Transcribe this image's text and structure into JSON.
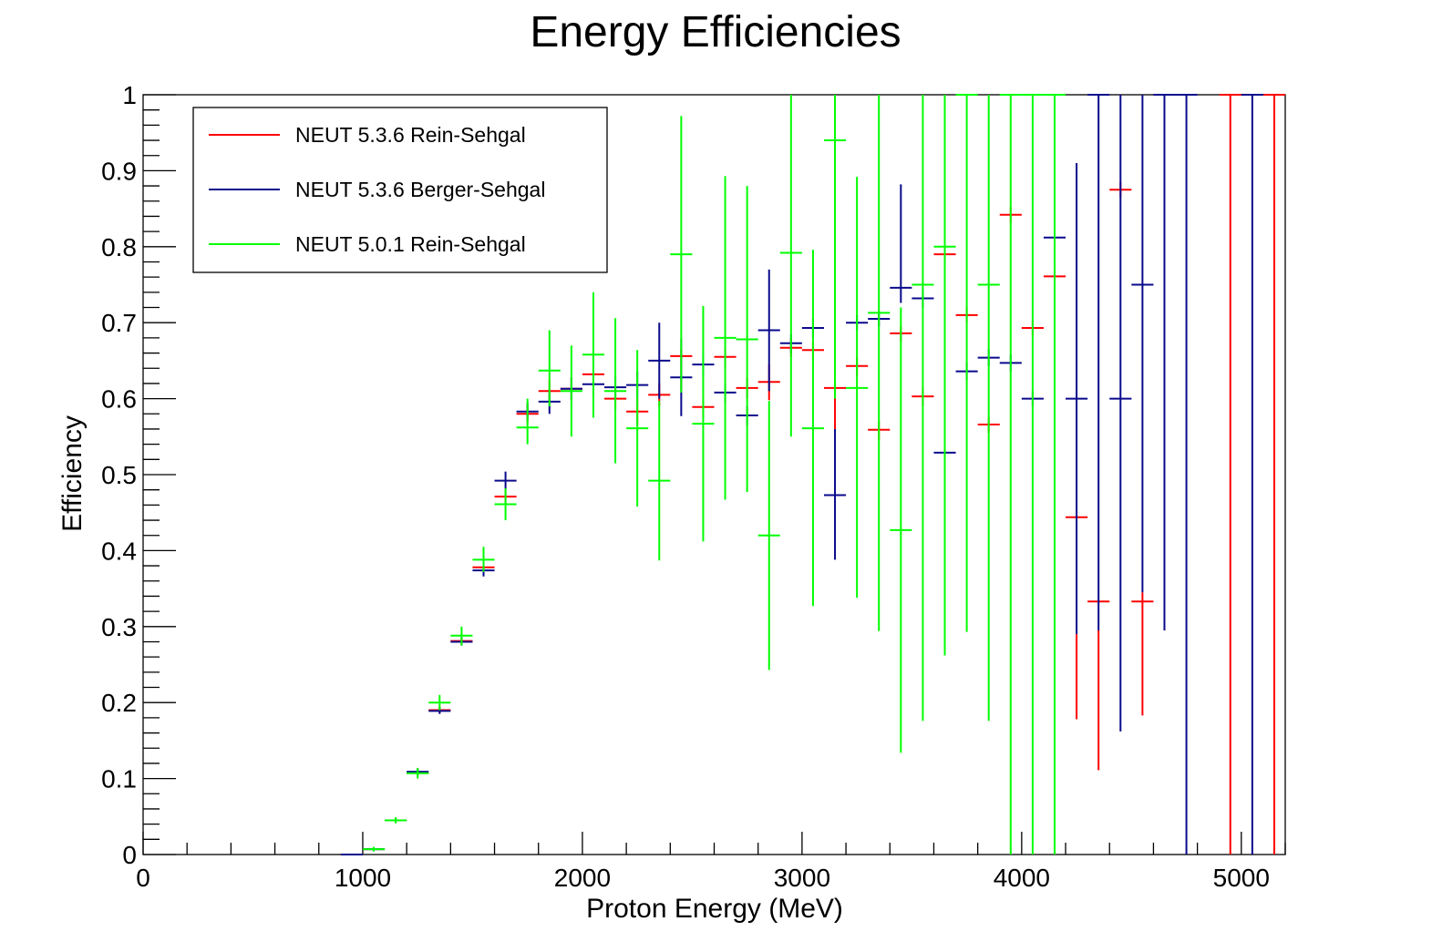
{
  "chart_data": {
    "type": "scatter",
    "title": "Energy Efficiencies",
    "xlabel": "Proton Energy (MeV)",
    "ylabel": "Efficiency",
    "xlim": [
      0,
      5200
    ],
    "ylim": [
      0,
      1
    ],
    "bin_width": 100,
    "x_ticks": [
      "0",
      "1000",
      "2000",
      "3000",
      "4000",
      "5000"
    ],
    "y_ticks": [
      "0",
      "0.1",
      "0.2",
      "0.3",
      "0.4",
      "0.5",
      "0.6",
      "0.7",
      "0.8",
      "0.9",
      "1"
    ],
    "legend_position": "top-left",
    "grid": false,
    "series": [
      {
        "name": "NEUT 5.3.6 Rein-Sehgal",
        "color": "#ff0000",
        "points": [
          {
            "x": 950,
            "y": 0,
            "lo": 0,
            "hi": 0
          },
          {
            "x": 1050,
            "y": 0.007,
            "lo": 0.005,
            "hi": 0.009
          },
          {
            "x": 1150,
            "y": 0.045,
            "lo": 0.043,
            "hi": 0.048
          },
          {
            "x": 1250,
            "y": 0.108,
            "lo": 0.104,
            "hi": 0.112
          },
          {
            "x": 1350,
            "y": 0.19,
            "lo": 0.186,
            "hi": 0.195
          },
          {
            "x": 1450,
            "y": 0.281,
            "lo": 0.276,
            "hi": 0.287
          },
          {
            "x": 1550,
            "y": 0.378,
            "lo": 0.37,
            "hi": 0.386
          },
          {
            "x": 1650,
            "y": 0.471,
            "lo": 0.46,
            "hi": 0.482
          },
          {
            "x": 1750,
            "y": 0.58,
            "lo": 0.568,
            "hi": 0.592
          },
          {
            "x": 1850,
            "y": 0.61,
            "lo": 0.595,
            "hi": 0.625
          },
          {
            "x": 1950,
            "y": 0.613,
            "lo": 0.598,
            "hi": 0.628
          },
          {
            "x": 2050,
            "y": 0.632,
            "lo": 0.615,
            "hi": 0.649
          },
          {
            "x": 2150,
            "y": 0.6,
            "lo": 0.585,
            "hi": 0.618
          },
          {
            "x": 2250,
            "y": 0.583,
            "lo": 0.565,
            "hi": 0.6
          },
          {
            "x": 2350,
            "y": 0.605,
            "lo": 0.59,
            "hi": 0.62
          },
          {
            "x": 2450,
            "y": 0.656,
            "lo": 0.61,
            "hi": 0.665
          },
          {
            "x": 2550,
            "y": 0.589,
            "lo": 0.575,
            "hi": 0.6
          },
          {
            "x": 2650,
            "y": 0.655,
            "lo": 0.64,
            "hi": 0.668
          },
          {
            "x": 2750,
            "y": 0.614,
            "lo": 0.6,
            "hi": 0.628
          },
          {
            "x": 2850,
            "y": 0.622,
            "lo": 0.598,
            "hi": 0.645
          },
          {
            "x": 2950,
            "y": 0.667,
            "lo": 0.655,
            "hi": 0.68
          },
          {
            "x": 3050,
            "y": 0.664,
            "lo": 0.65,
            "hi": 0.675
          },
          {
            "x": 3150,
            "y": 0.614,
            "lo": 0.56,
            "hi": 0.625
          },
          {
            "x": 3250,
            "y": 0.643,
            "lo": 0.63,
            "hi": 0.655
          },
          {
            "x": 3350,
            "y": 0.559,
            "lo": 0.545,
            "hi": 0.57
          },
          {
            "x": 3450,
            "y": 0.686,
            "lo": 0.675,
            "hi": 0.695
          },
          {
            "x": 3550,
            "y": 0.603,
            "lo": 0.59,
            "hi": 0.615
          },
          {
            "x": 3650,
            "y": 0.79,
            "lo": 0.78,
            "hi": 0.8
          },
          {
            "x": 3750,
            "y": 0.71,
            "lo": 0.7,
            "hi": 0.72
          },
          {
            "x": 3850,
            "y": 0.566,
            "lo": 0.555,
            "hi": 0.575
          },
          {
            "x": 3950,
            "y": 0.842,
            "lo": 0.832,
            "hi": 0.852
          },
          {
            "x": 4050,
            "y": 0.693,
            "lo": 0.683,
            "hi": 0.703
          },
          {
            "x": 4150,
            "y": 0.761,
            "lo": 0.751,
            "hi": 0.771
          },
          {
            "x": 4250,
            "y": 0.444,
            "lo": 0.178,
            "hi": 0.29
          },
          {
            "x": 4350,
            "y": 0.333,
            "lo": 0.111,
            "hi": 0.295
          },
          {
            "x": 4450,
            "y": 0.875,
            "lo": 0.865,
            "hi": 0.885
          },
          {
            "x": 4550,
            "y": 0.333,
            "lo": 0.183,
            "hi": 0.345
          },
          {
            "x": 4950,
            "y": 1,
            "lo": 0,
            "hi": 1
          },
          {
            "x": 5150,
            "y": 1,
            "lo": 0,
            "hi": 1
          }
        ]
      },
      {
        "name": "NEUT 5.3.6 Berger-Sehgal",
        "color": "#0a0a8c",
        "points": [
          {
            "x": 950,
            "y": 0,
            "lo": 0,
            "hi": 0
          },
          {
            "x": 1050,
            "y": 0.007,
            "lo": 0.005,
            "hi": 0.009
          },
          {
            "x": 1150,
            "y": 0.045,
            "lo": 0.043,
            "hi": 0.048
          },
          {
            "x": 1250,
            "y": 0.109,
            "lo": 0.105,
            "hi": 0.113
          },
          {
            "x": 1350,
            "y": 0.189,
            "lo": 0.185,
            "hi": 0.194
          },
          {
            "x": 1450,
            "y": 0.28,
            "lo": 0.275,
            "hi": 0.286
          },
          {
            "x": 1550,
            "y": 0.374,
            "lo": 0.366,
            "hi": 0.382
          },
          {
            "x": 1650,
            "y": 0.492,
            "lo": 0.48,
            "hi": 0.504
          },
          {
            "x": 1750,
            "y": 0.583,
            "lo": 0.572,
            "hi": 0.595
          },
          {
            "x": 1850,
            "y": 0.596,
            "lo": 0.58,
            "hi": 0.612
          },
          {
            "x": 1950,
            "y": 0.613,
            "lo": 0.598,
            "hi": 0.628
          },
          {
            "x": 2050,
            "y": 0.619,
            "lo": 0.603,
            "hi": 0.635
          },
          {
            "x": 2150,
            "y": 0.615,
            "lo": 0.6,
            "hi": 0.63
          },
          {
            "x": 2250,
            "y": 0.618,
            "lo": 0.6,
            "hi": 0.636
          },
          {
            "x": 2350,
            "y": 0.65,
            "lo": 0.6,
            "hi": 0.7
          },
          {
            "x": 2450,
            "y": 0.628,
            "lo": 0.577,
            "hi": 0.679
          },
          {
            "x": 2550,
            "y": 0.645,
            "lo": 0.63,
            "hi": 0.66
          },
          {
            "x": 2650,
            "y": 0.608,
            "lo": 0.595,
            "hi": 0.62
          },
          {
            "x": 2750,
            "y": 0.578,
            "lo": 0.565,
            "hi": 0.59
          },
          {
            "x": 2850,
            "y": 0.69,
            "lo": 0.61,
            "hi": 0.77
          },
          {
            "x": 2950,
            "y": 0.673,
            "lo": 0.66,
            "hi": 0.685
          },
          {
            "x": 3050,
            "y": 0.693,
            "lo": 0.68,
            "hi": 0.705
          },
          {
            "x": 3150,
            "y": 0.473,
            "lo": 0.388,
            "hi": 0.56
          },
          {
            "x": 3250,
            "y": 0.7,
            "lo": 0.69,
            "hi": 0.71
          },
          {
            "x": 3350,
            "y": 0.705,
            "lo": 0.695,
            "hi": 0.715
          },
          {
            "x": 3450,
            "y": 0.746,
            "lo": 0.726,
            "hi": 0.882
          },
          {
            "x": 3550,
            "y": 0.732,
            "lo": 0.72,
            "hi": 0.745
          },
          {
            "x": 3650,
            "y": 0.529,
            "lo": 0.52,
            "hi": 0.54
          },
          {
            "x": 3750,
            "y": 0.636,
            "lo": 0.625,
            "hi": 0.648
          },
          {
            "x": 3850,
            "y": 0.654,
            "lo": 0.643,
            "hi": 0.665
          },
          {
            "x": 3950,
            "y": 0.647,
            "lo": 0.636,
            "hi": 0.658
          },
          {
            "x": 4050,
            "y": 0.6,
            "lo": 0.59,
            "hi": 0.61
          },
          {
            "x": 4150,
            "y": 0.812,
            "lo": 0.802,
            "hi": 0.822
          },
          {
            "x": 4250,
            "y": 0.6,
            "lo": 0.29,
            "hi": 0.91
          },
          {
            "x": 4350,
            "y": 1,
            "lo": 0.295,
            "hi": 1
          },
          {
            "x": 4450,
            "y": 0.6,
            "lo": 0.162,
            "hi": 1
          },
          {
            "x": 4550,
            "y": 0.75,
            "lo": 0.345,
            "hi": 1
          },
          {
            "x": 4650,
            "y": 1,
            "lo": 0.295,
            "hi": 1
          },
          {
            "x": 4750,
            "y": 1,
            "lo": 0,
            "hi": 1
          },
          {
            "x": 5050,
            "y": 1,
            "lo": 0,
            "hi": 1
          }
        ]
      },
      {
        "name": "NEUT 5.0.1 Rein-Sehgal",
        "color": "#00ff00",
        "points": [
          {
            "x": 1050,
            "y": 0.007,
            "lo": 0.004,
            "hi": 0.01
          },
          {
            "x": 1150,
            "y": 0.045,
            "lo": 0.041,
            "hi": 0.049
          },
          {
            "x": 1250,
            "y": 0.107,
            "lo": 0.1,
            "hi": 0.114
          },
          {
            "x": 1350,
            "y": 0.2,
            "lo": 0.19,
            "hi": 0.21
          },
          {
            "x": 1450,
            "y": 0.288,
            "lo": 0.275,
            "hi": 0.3
          },
          {
            "x": 1550,
            "y": 0.388,
            "lo": 0.372,
            "hi": 0.405
          },
          {
            "x": 1650,
            "y": 0.461,
            "lo": 0.44,
            "hi": 0.482
          },
          {
            "x": 1750,
            "y": 0.562,
            "lo": 0.54,
            "hi": 0.6
          },
          {
            "x": 1850,
            "y": 0.637,
            "lo": 0.59,
            "hi": 0.69
          },
          {
            "x": 1950,
            "y": 0.61,
            "lo": 0.55,
            "hi": 0.67
          },
          {
            "x": 2050,
            "y": 0.658,
            "lo": 0.575,
            "hi": 0.74
          },
          {
            "x": 2150,
            "y": 0.61,
            "lo": 0.515,
            "hi": 0.706
          },
          {
            "x": 2250,
            "y": 0.561,
            "lo": 0.458,
            "hi": 0.664
          },
          {
            "x": 2350,
            "y": 0.492,
            "lo": 0.387,
            "hi": 0.597
          },
          {
            "x": 2450,
            "y": 0.79,
            "lo": 0.608,
            "hi": 0.972
          },
          {
            "x": 2550,
            "y": 0.567,
            "lo": 0.412,
            "hi": 0.722
          },
          {
            "x": 2650,
            "y": 0.68,
            "lo": 0.467,
            "hi": 0.893
          },
          {
            "x": 2750,
            "y": 0.678,
            "lo": 0.477,
            "hi": 0.88
          },
          {
            "x": 2850,
            "y": 0.42,
            "lo": 0.243,
            "hi": 0.597
          },
          {
            "x": 2950,
            "y": 0.792,
            "lo": 0.55,
            "hi": 1
          },
          {
            "x": 3050,
            "y": 0.561,
            "lo": 0.327,
            "hi": 0.796
          },
          {
            "x": 3150,
            "y": 0.94,
            "lo": 0.6,
            "hi": 1
          },
          {
            "x": 3250,
            "y": 0.614,
            "lo": 0.338,
            "hi": 0.892
          },
          {
            "x": 3350,
            "y": 0.713,
            "lo": 0.294,
            "hi": 1
          },
          {
            "x": 3450,
            "y": 0.427,
            "lo": 0.134,
            "hi": 0.72
          },
          {
            "x": 3550,
            "y": 0.75,
            "lo": 0.176,
            "hi": 1
          },
          {
            "x": 3650,
            "y": 0.8,
            "lo": 0.262,
            "hi": 1
          },
          {
            "x": 3750,
            "y": 1,
            "lo": 0.293,
            "hi": 1
          },
          {
            "x": 3850,
            "y": 0.75,
            "lo": 0.176,
            "hi": 1
          },
          {
            "x": 3950,
            "y": 1,
            "lo": 0,
            "hi": 1
          },
          {
            "x": 4050,
            "y": 1,
            "lo": 0,
            "hi": 1
          },
          {
            "x": 4150,
            "y": 1,
            "lo": 0,
            "hi": 1
          }
        ]
      }
    ]
  }
}
